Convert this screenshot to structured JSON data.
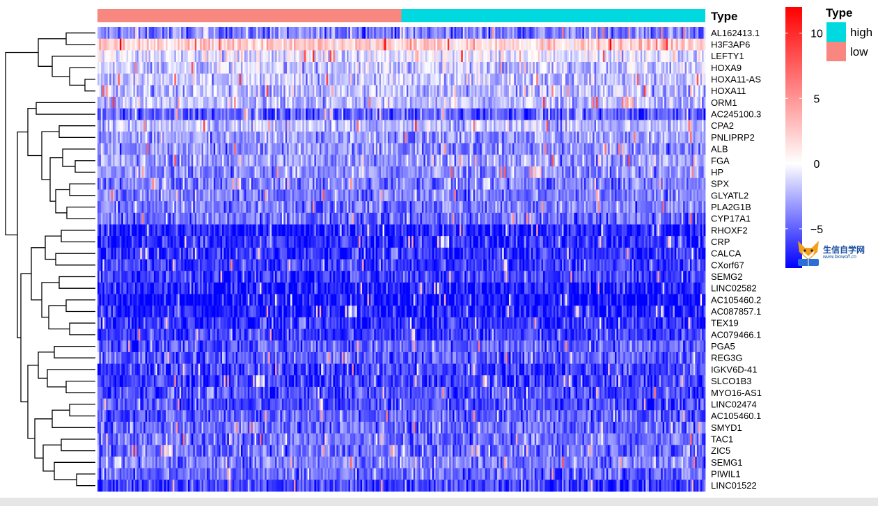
{
  "chart_data": {
    "type": "heatmap",
    "annotation": {
      "title": "Type",
      "groups": [
        {
          "name": "low",
          "count": 178,
          "color": "#F8877F"
        },
        {
          "name": "high",
          "count": 178,
          "color": "#00D9DF"
        }
      ],
      "legend_order": [
        "high",
        "low"
      ]
    },
    "rows": [
      "AL162413.1",
      "H3F3AP6",
      "LEFTY1",
      "HOXA9",
      "HOXA11-AS",
      "HOXA11",
      "ORM1",
      "AC245100.3",
      "CPA2",
      "PNLIPRP2",
      "ALB",
      "FGA",
      "HP",
      "SPX",
      "GLYATL2",
      "PLA2G1B",
      "CYP17A1",
      "RHOXF2",
      "CRP",
      "CALCA",
      "CXorf67",
      "SEMG2",
      "LINC02582",
      "AC105460.2",
      "AC087857.1",
      "TEX19",
      "AC079466.1",
      "PGA5",
      "REG3G",
      "IGKV6D-41",
      "SLCO1B3",
      "MYO16-AS1",
      "LINC02474",
      "AC105460.1",
      "SMYD1",
      "TAC1",
      "ZIC5",
      "SEMG1",
      "PIWIL1",
      "LINC01522"
    ],
    "row_means": [
      -4,
      2,
      -0.5,
      -1.5,
      -1.8,
      -2,
      -2,
      -5,
      -2,
      -3,
      -3.5,
      -3,
      -3.5,
      -4,
      -4,
      -4,
      -4.5,
      -7,
      -6.5,
      -6.5,
      -6,
      -6,
      -7,
      -7.5,
      -7,
      -6.5,
      -6,
      -5,
      -5,
      -6,
      -6,
      -5.5,
      -5.5,
      -5,
      -4.5,
      -4.5,
      -4.5,
      -4,
      -4.5,
      -6
    ],
    "color_scale": {
      "min": -8,
      "max": 12,
      "low": "#0000FF",
      "mid": "#FFFFFF",
      "high": "#FF0000",
      "midpoint": 0
    },
    "colorbar_ticks": [
      10,
      5,
      0,
      -5
    ],
    "colorbar_tick_labels": [
      "10",
      "5",
      "0",
      "−5"
    ],
    "legend_title": "Type",
    "dendrogram": "rows",
    "grid": false
  },
  "watermark": {
    "main": "生信自学网",
    "sub": "www.biowolf.cn"
  }
}
